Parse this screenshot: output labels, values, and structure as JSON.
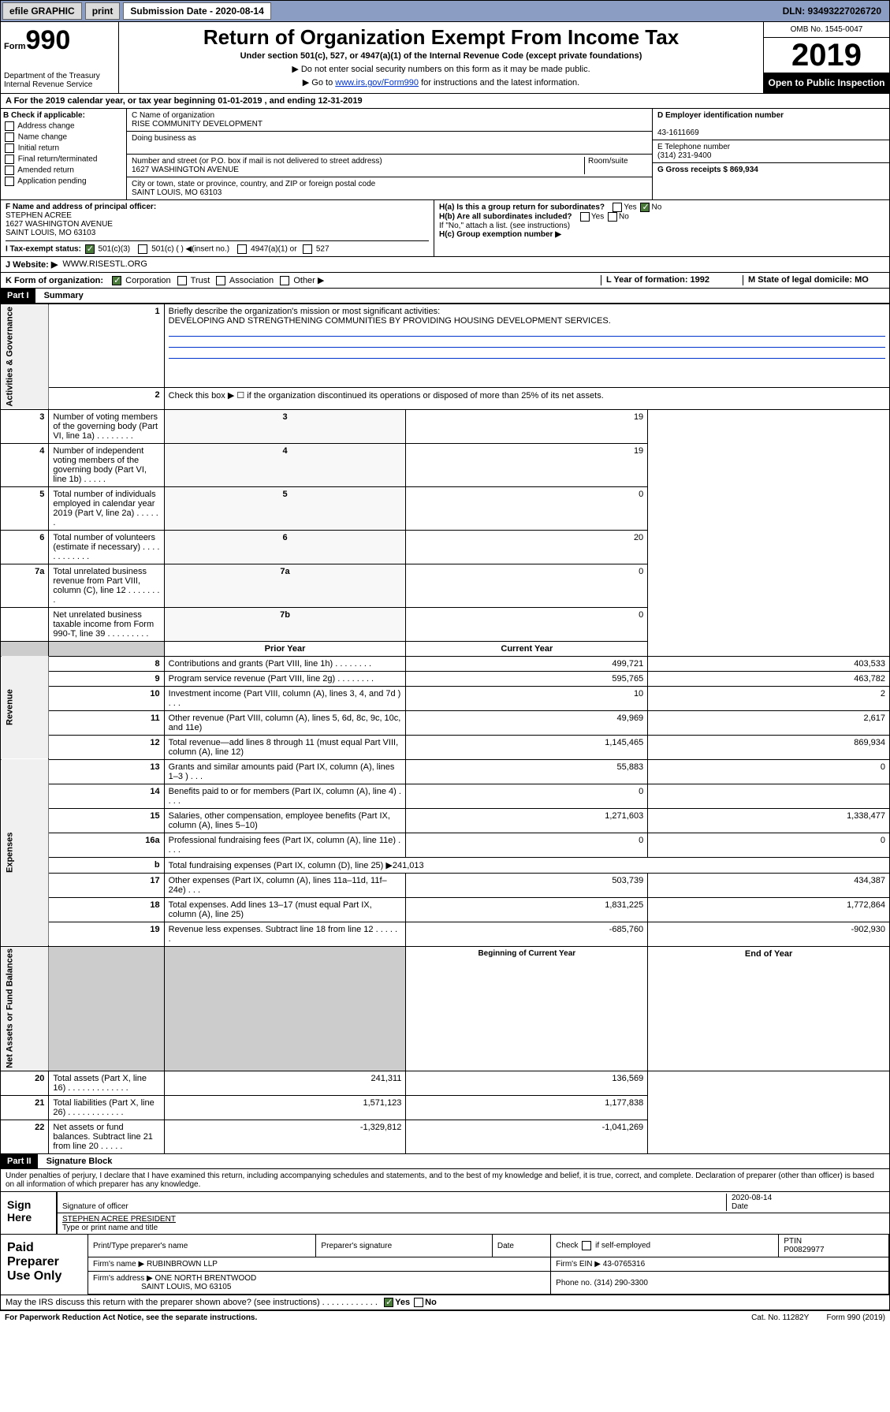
{
  "topbar": {
    "efile": "efile GRAPHIC",
    "print": "print",
    "subdate_lbl": "Submission Date - 2020-08-14",
    "dln": "DLN: 93493227026720"
  },
  "header": {
    "form_prefix": "Form",
    "form_num": "990",
    "dept": "Department of the Treasury\nInternal Revenue Service",
    "title": "Return of Organization Exempt From Income Tax",
    "sub": "Under section 501(c), 527, or 4947(a)(1) of the Internal Revenue Code (except private foundations)",
    "note1": "▶ Do not enter social security numbers on this form as it may be made public.",
    "note2_a": "▶ Go to ",
    "note2_link": "www.irs.gov/Form990",
    "note2_b": " for instructions and the latest information.",
    "omb": "OMB No. 1545-0047",
    "year": "2019",
    "open": "Open to Public Inspection"
  },
  "period": "A For the 2019 calendar year, or tax year beginning 01-01-2019    , and ending 12-31-2019",
  "boxB": {
    "lbl": "B Check if applicable:",
    "addr": "Address change",
    "name": "Name change",
    "init": "Initial return",
    "final": "Final return/terminated",
    "amend": "Amended return",
    "app": "Application pending"
  },
  "boxC": {
    "name_lbl": "C Name of organization",
    "name": "RISE COMMUNITY DEVELOPMENT",
    "dba_lbl": "Doing business as",
    "addr_lbl": "Number and street (or P.O. box if mail is not delivered to street address)",
    "room_lbl": "Room/suite",
    "addr": "1627 WASHINGTON AVENUE",
    "city_lbl": "City or town, state or province, country, and ZIP or foreign postal code",
    "city": "SAINT LOUIS, MO  63103"
  },
  "boxD": {
    "lbl": "D Employer identification number",
    "val": "43-1611669"
  },
  "boxE": {
    "lbl": "E Telephone number",
    "val": "(314) 231-9400"
  },
  "boxG": {
    "lbl": "G Gross receipts $ 869,934"
  },
  "boxF": {
    "lbl": "F  Name and address of principal officer:",
    "name": "STEPHEN ACREE",
    "addr": "1627 WASHINGTON AVENUE",
    "city": "SAINT LOUIS, MO  63103"
  },
  "boxH": {
    "a": "H(a)  Is this a group return for subordinates?",
    "b": "H(b)  Are all subordinates included?",
    "b2": "If \"No,\" attach a list. (see instructions)",
    "c": "H(c)  Group exemption number ▶",
    "yes": "Yes",
    "no": "No"
  },
  "boxI": {
    "lbl": "I   Tax-exempt status:",
    "o1": "501(c)(3)",
    "o2": "501(c) (  ) ◀(insert no.)",
    "o3": "4947(a)(1) or",
    "o4": "527"
  },
  "boxJ": {
    "lbl": "J   Website: ▶",
    "val": "WWW.RISESTL.ORG"
  },
  "boxK": {
    "lbl": "K Form of organization:",
    "corp": "Corporation",
    "trust": "Trust",
    "assoc": "Association",
    "other": "Other ▶"
  },
  "boxL": {
    "lbl": "L Year of formation: 1992"
  },
  "boxM": {
    "lbl": "M State of legal domicile: MO"
  },
  "part1": {
    "bar": "Part I",
    "title": "Summary"
  },
  "summary": {
    "q1": "Briefly describe the organization's mission or most significant activities:",
    "a1": "DEVELOPING AND STRENGTHENING COMMUNITIES BY PROVIDING HOUSING DEVELOPMENT SERVICES.",
    "q2": "Check this box ▶ ☐  if the organization discontinued its operations or disposed of more than 25% of its net assets.",
    "rows_gov": [
      {
        "n": "3",
        "d": "Number of voting members of the governing body (Part VI, line 1a)  .    .    .    .    .    .    .    .",
        "box": "3",
        "v": "19"
      },
      {
        "n": "4",
        "d": "Number of independent voting members of the governing body (Part VI, line 1b)   .    .    .    .    .",
        "box": "4",
        "v": "19"
      },
      {
        "n": "5",
        "d": "Total number of individuals employed in calendar year 2019 (Part V, line 2a)   .    .    .    .    .    .",
        "box": "5",
        "v": "0"
      },
      {
        "n": "6",
        "d": "Total number of volunteers (estimate if necessary)   .    .    .    .    .    .    .    .    .    .    .    .",
        "box": "6",
        "v": "20"
      },
      {
        "n": "7a",
        "d": "Total unrelated business revenue from Part VIII, column (C), line 12   .    .    .    .    .    .    .    .",
        "box": "7a",
        "v": "0"
      },
      {
        "n": "",
        "d": "Net unrelated business taxable income from Form 990-T, line 39   .    .    .    .    .    .    .    .    .",
        "box": "7b",
        "v": "0"
      }
    ],
    "hdr_prior": "Prior Year",
    "hdr_curr": "Current Year",
    "rev": [
      {
        "n": "8",
        "d": "Contributions and grants (Part VIII, line 1h)   .    .    .    .    .    .    .    .",
        "p": "499,721",
        "c": "403,533"
      },
      {
        "n": "9",
        "d": "Program service revenue (Part VIII, line 2g)   .    .    .    .    .    .    .    .",
        "p": "595,765",
        "c": "463,782"
      },
      {
        "n": "10",
        "d": "Investment income (Part VIII, column (A), lines 3, 4, and 7d )   .    .    .",
        "p": "10",
        "c": "2"
      },
      {
        "n": "11",
        "d": "Other revenue (Part VIII, column (A), lines 5, 6d, 8c, 9c, 10c, and 11e)",
        "p": "49,969",
        "c": "2,617"
      },
      {
        "n": "12",
        "d": "Total revenue—add lines 8 through 11 (must equal Part VIII, column (A), line 12)",
        "p": "1,145,465",
        "c": "869,934"
      }
    ],
    "exp": [
      {
        "n": "13",
        "d": "Grants and similar amounts paid (Part IX, column (A), lines 1–3 )   .    .    .",
        "p": "55,883",
        "c": "0"
      },
      {
        "n": "14",
        "d": "Benefits paid to or for members (Part IX, column (A), line 4)   .    .    .    .",
        "p": "0",
        "c": ""
      },
      {
        "n": "15",
        "d": "Salaries, other compensation, employee benefits (Part IX, column (A), lines 5–10)",
        "p": "1,271,603",
        "c": "1,338,477"
      },
      {
        "n": "16a",
        "d": "Professional fundraising fees (Part IX, column (A), line 11e)   .    .    .    .",
        "p": "0",
        "c": "0"
      },
      {
        "n": "b",
        "d": "Total fundraising expenses (Part IX, column (D), line 25) ▶241,013",
        "p": "",
        "c": "",
        "noval": true
      },
      {
        "n": "17",
        "d": "Other expenses (Part IX, column (A), lines 11a–11d, 11f–24e)   .    .    .",
        "p": "503,739",
        "c": "434,387"
      },
      {
        "n": "18",
        "d": "Total expenses. Add lines 13–17 (must equal Part IX, column (A), line 25)",
        "p": "1,831,225",
        "c": "1,772,864"
      },
      {
        "n": "19",
        "d": "Revenue less expenses. Subtract line 18 from line 12   .    .    .    .    .    .",
        "p": "-685,760",
        "c": "-902,930"
      }
    ],
    "hdr_beg": "Beginning of Current Year",
    "hdr_end": "End of Year",
    "net": [
      {
        "n": "20",
        "d": "Total assets (Part X, line 16)   .    .    .    .    .    .    .    .    .    .    .    .    .",
        "p": "241,311",
        "c": "136,569"
      },
      {
        "n": "21",
        "d": "Total liabilities (Part X, line 26)   .    .    .    .    .    .    .    .    .    .    .    .",
        "p": "1,571,123",
        "c": "1,177,838"
      },
      {
        "n": "22",
        "d": "Net assets or fund balances. Subtract line 21 from line 20   .    .    .    .    .",
        "p": "-1,329,812",
        "c": "-1,041,269"
      }
    ],
    "side_gov": "Activities & Governance",
    "side_rev": "Revenue",
    "side_exp": "Expenses",
    "side_net": "Net Assets or Fund Balances"
  },
  "part2": {
    "bar": "Part II",
    "title": "Signature Block"
  },
  "decl": "Under penalties of perjury, I declare that I have examined this return, including accompanying schedules and statements, and to the best of my knowledge and belief, it is true, correct, and complete. Declaration of preparer (other than officer) is based on all information of which preparer has any knowledge.",
  "sign": {
    "here": "Sign Here",
    "sig_lbl": "Signature of officer",
    "date": "2020-08-14",
    "date_lbl": "Date",
    "name": "STEPHEN ACREE PRESIDENT",
    "name_lbl": "Type or print name and title"
  },
  "prep": {
    "lbl": "Paid Preparer Use Only",
    "h1": "Print/Type preparer's name",
    "h2": "Preparer's signature",
    "h3": "Date",
    "h4a": "Check",
    "h4b": "if self-employed",
    "h5": "PTIN",
    "ptin": "P00829977",
    "firm_lbl": "Firm's name    ▶",
    "firm": "RUBINBROWN LLP",
    "ein_lbl": "Firm's EIN ▶",
    "ein": "43-0765316",
    "addr_lbl": "Firm's address ▶",
    "addr": "ONE NORTH BRENTWOOD",
    "city": "SAINT LOUIS, MO  63105",
    "phone_lbl": "Phone no.",
    "phone": "(314) 290-3300"
  },
  "discuss": {
    "q": "May the IRS discuss this return with the preparer shown above? (see instructions)   .    .    .    .    .    .    .    .    .    .    .    .",
    "yes": "Yes",
    "no": "No"
  },
  "footer": {
    "pra": "For Paperwork Reduction Act Notice, see the separate instructions.",
    "cat": "Cat. No. 11282Y",
    "form": "Form 990 (2019)"
  }
}
